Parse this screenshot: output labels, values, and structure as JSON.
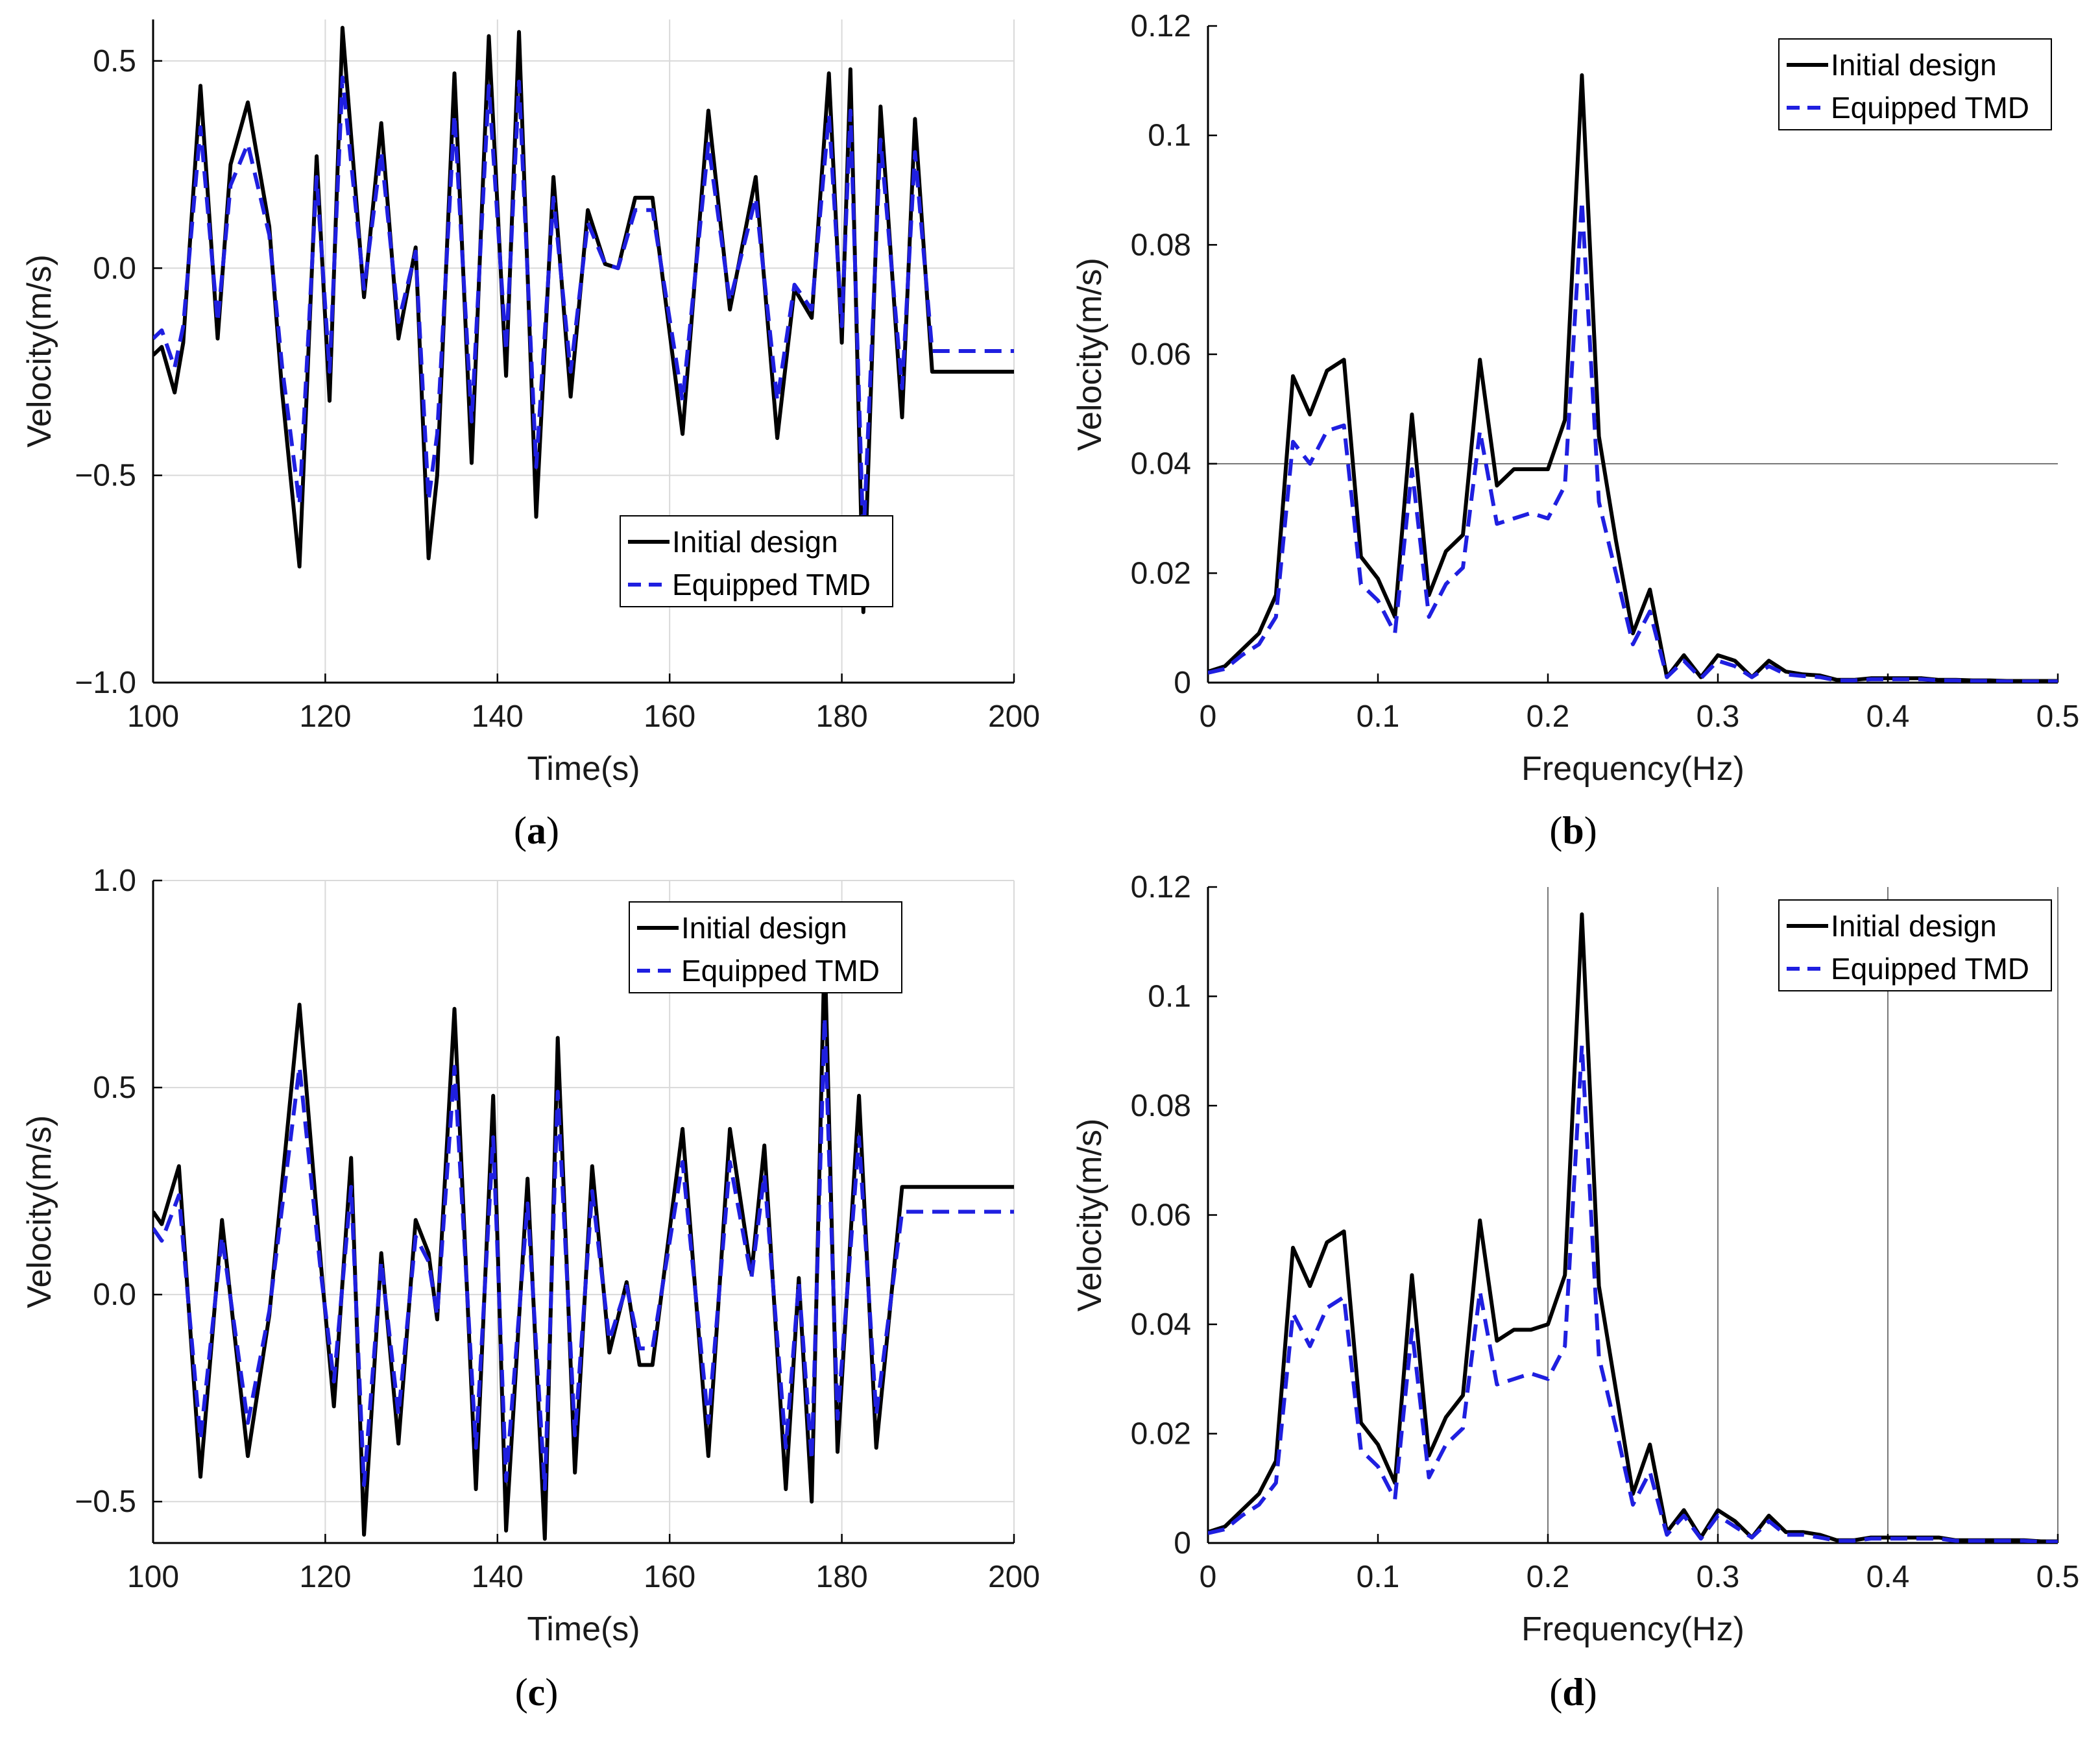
{
  "figure": {
    "colors": {
      "initial": "#000000",
      "tmd": "#1f1fe0",
      "grid": "#d9d9d9",
      "refline": "#555555"
    }
  },
  "chart_data": [
    {
      "type": "line",
      "panel": "(a)",
      "panel_letter": "a",
      "xlabel": "Time(s)",
      "ylabel": "Velocity(m/s)",
      "xlim": [
        100,
        200
      ],
      "ylim": [
        -1.0,
        0.6
      ],
      "xticks": [
        100,
        120,
        140,
        160,
        180,
        200
      ],
      "yticks": [
        -1.0,
        -0.5,
        0.0,
        0.5
      ],
      "ytick_labels": [
        "−1.0",
        "−0.5",
        "0.0",
        "0.5"
      ],
      "grid": true,
      "legend_position": "lower-right",
      "series": [
        {
          "name": "Initial design",
          "style": "solid",
          "x": [
            100,
            101,
            102.5,
            103.5,
            105.5,
            107.5,
            109,
            111,
            113.5,
            115,
            117,
            119,
            120.5,
            122,
            124.5,
            126.5,
            128.5,
            130.5,
            132,
            133,
            135,
            137,
            139,
            141,
            142.5,
            144.5,
            146.5,
            148.5,
            150.5,
            152.5,
            154,
            156,
            158,
            161.5,
            164.5,
            167,
            170,
            172.5,
            174.5,
            176.5,
            178.5,
            180,
            181,
            182.5,
            184.5,
            187,
            188.5,
            190.5,
            192.5,
            194.5,
            196.5,
            198,
            200
          ],
          "y": [
            -0.21,
            -0.19,
            -0.3,
            -0.18,
            0.44,
            -0.17,
            0.25,
            0.4,
            0.1,
            -0.3,
            -0.72,
            0.27,
            -0.32,
            0.58,
            -0.07,
            0.35,
            -0.17,
            0.05,
            -0.7,
            -0.5,
            0.47,
            -0.47,
            0.56,
            -0.26,
            0.57,
            -0.6,
            0.22,
            -0.31,
            0.14,
            0.01,
            0.0,
            0.17,
            0.17,
            -0.4,
            0.38,
            -0.1,
            0.22,
            -0.41,
            -0.05,
            -0.12,
            0.47,
            -0.18,
            0.48,
            -0.83,
            0.39,
            -0.36,
            0.36,
            -0.25,
            -0.25,
            -0.25,
            -0.25,
            -0.25,
            -0.25
          ]
        },
        {
          "name": "Equipped TMD",
          "style": "dashed",
          "x": [
            100,
            101,
            102.5,
            103.5,
            105.5,
            107.5,
            109,
            111,
            113.5,
            115,
            117,
            119,
            120.5,
            122,
            124.5,
            126.5,
            128.5,
            130.5,
            132,
            133,
            135,
            137,
            139,
            141,
            142.5,
            144.5,
            146.5,
            148.5,
            150.5,
            152.5,
            154,
            156,
            158,
            161.5,
            164.5,
            167,
            170,
            172.5,
            174.5,
            176.5,
            178.5,
            180,
            181,
            182.5,
            184.5,
            187,
            188.5,
            190.5,
            192.5,
            194.5,
            196.5,
            198,
            200
          ],
          "y": [
            -0.17,
            -0.15,
            -0.24,
            -0.14,
            0.34,
            -0.13,
            0.2,
            0.3,
            0.08,
            -0.24,
            -0.57,
            0.22,
            -0.25,
            0.46,
            -0.05,
            0.28,
            -0.13,
            0.04,
            -0.56,
            -0.4,
            0.37,
            -0.37,
            0.44,
            -0.2,
            0.45,
            -0.48,
            0.17,
            -0.25,
            0.11,
            0.01,
            0.0,
            0.14,
            0.14,
            -0.32,
            0.3,
            -0.08,
            0.17,
            -0.32,
            -0.04,
            -0.1,
            0.37,
            -0.14,
            0.38,
            -0.66,
            0.31,
            -0.29,
            0.28,
            -0.2,
            -0.2,
            -0.2,
            -0.2,
            -0.2,
            -0.2
          ]
        }
      ]
    },
    {
      "type": "line",
      "panel": "(b)",
      "panel_letter": "b",
      "xlabel": "Frequency(Hz)",
      "ylabel": "Velocity(m/s)",
      "xlim": [
        0,
        0.5
      ],
      "ylim": [
        0,
        0.12
      ],
      "xticks": [
        0,
        0.1,
        0.2,
        0.3,
        0.4,
        0.5
      ],
      "xtick_labels": [
        "0",
        "0.1",
        "0.2",
        "0.3",
        "0.4",
        "0.5"
      ],
      "yticks": [
        0,
        0.02,
        0.04,
        0.06,
        0.08,
        0.1,
        0.12
      ],
      "ytick_labels": [
        "0",
        "0.02",
        "0.04",
        "0.06",
        "0.08",
        "0.1",
        "0.12"
      ],
      "grid": false,
      "reference_lines": {
        "horizontal": [
          0.04
        ],
        "vertical": []
      },
      "legend_position": "top-right",
      "series": [
        {
          "name": "Initial design",
          "style": "solid",
          "x": [
            0,
            0.01,
            0.02,
            0.03,
            0.04,
            0.05,
            0.06,
            0.07,
            0.08,
            0.09,
            0.1,
            0.11,
            0.12,
            0.13,
            0.14,
            0.15,
            0.16,
            0.17,
            0.18,
            0.19,
            0.2,
            0.21,
            0.22,
            0.23,
            0.24,
            0.25,
            0.26,
            0.27,
            0.28,
            0.29,
            0.3,
            0.31,
            0.32,
            0.33,
            0.34,
            0.35,
            0.36,
            0.37,
            0.38,
            0.39,
            0.4,
            0.41,
            0.42,
            0.43,
            0.44,
            0.45,
            0.46,
            0.47,
            0.48,
            0.49,
            0.5
          ],
          "y": [
            0.002,
            0.003,
            0.006,
            0.009,
            0.016,
            0.056,
            0.049,
            0.057,
            0.059,
            0.023,
            0.019,
            0.012,
            0.049,
            0.016,
            0.024,
            0.027,
            0.059,
            0.036,
            0.039,
            0.039,
            0.039,
            0.048,
            0.111,
            0.045,
            0.026,
            0.009,
            0.017,
            0.001,
            0.005,
            0.001,
            0.005,
            0.004,
            0.001,
            0.004,
            0.002,
            0.0015,
            0.0013,
            0.0005,
            0.0005,
            0.0008,
            0.0008,
            0.0008,
            0.0008,
            0.0005,
            0.0005,
            0.0004,
            0.0004,
            0.0003,
            0.0003,
            0.0003,
            0.0003
          ]
        },
        {
          "name": "Equipped TMD",
          "style": "dashed",
          "x": [
            0,
            0.01,
            0.02,
            0.03,
            0.04,
            0.05,
            0.06,
            0.07,
            0.08,
            0.09,
            0.1,
            0.11,
            0.12,
            0.13,
            0.14,
            0.15,
            0.16,
            0.17,
            0.18,
            0.19,
            0.2,
            0.21,
            0.22,
            0.23,
            0.24,
            0.25,
            0.26,
            0.27,
            0.28,
            0.29,
            0.3,
            0.31,
            0.32,
            0.33,
            0.34,
            0.35,
            0.36,
            0.37,
            0.38,
            0.39,
            0.4,
            0.41,
            0.42,
            0.43,
            0.44,
            0.45,
            0.46,
            0.47,
            0.48,
            0.49,
            0.5
          ],
          "y": [
            0.0018,
            0.0025,
            0.005,
            0.007,
            0.012,
            0.044,
            0.04,
            0.046,
            0.047,
            0.018,
            0.015,
            0.009,
            0.039,
            0.012,
            0.018,
            0.021,
            0.046,
            0.029,
            0.03,
            0.031,
            0.03,
            0.036,
            0.088,
            0.033,
            0.02,
            0.007,
            0.013,
            0.001,
            0.004,
            0.0008,
            0.004,
            0.003,
            0.001,
            0.003,
            0.0015,
            0.0012,
            0.001,
            0.0004,
            0.0004,
            0.0006,
            0.0006,
            0.0006,
            0.0006,
            0.0004,
            0.0004,
            0.0003,
            0.0003,
            0.0002,
            0.0002,
            0.0002,
            0.0002
          ]
        }
      ]
    },
    {
      "type": "line",
      "panel": "(c)",
      "panel_letter": "c",
      "xlabel": "Time(s)",
      "ylabel": "Velocity(m/s)",
      "xlim": [
        100,
        200
      ],
      "ylim": [
        -0.6,
        1.0
      ],
      "xticks": [
        100,
        120,
        140,
        160,
        180,
        200
      ],
      "yticks": [
        -0.5,
        0.0,
        0.5,
        1.0
      ],
      "ytick_labels": [
        "−0.5",
        "0.0",
        "0.5",
        "1.0"
      ],
      "grid": true,
      "legend_position": "top-right",
      "series": [
        {
          "name": "Initial design",
          "style": "solid",
          "x": [
            100,
            101,
            103,
            105.5,
            108,
            111,
            113.5,
            117,
            119.5,
            121,
            123,
            124.5,
            126.5,
            128.5,
            130.5,
            132,
            133,
            135,
            137.5,
            139.5,
            141,
            143.5,
            145.5,
            147,
            149,
            151,
            153,
            155,
            156.5,
            158,
            161.5,
            164.5,
            167,
            169.5,
            171,
            173.5,
            175,
            176.5,
            178,
            179.5,
            182,
            184,
            187,
            189,
            190.5,
            192.5,
            194.5,
            196.5,
            198,
            200
          ],
          "y": [
            0.2,
            0.17,
            0.31,
            -0.44,
            0.18,
            -0.39,
            -0.05,
            0.7,
            0.07,
            -0.27,
            0.33,
            -0.58,
            0.1,
            -0.36,
            0.18,
            0.1,
            -0.06,
            0.69,
            -0.47,
            0.48,
            -0.57,
            0.28,
            -0.59,
            0.62,
            -0.43,
            0.31,
            -0.14,
            0.03,
            -0.17,
            -0.17,
            0.4,
            -0.39,
            0.4,
            0.05,
            0.36,
            -0.47,
            0.04,
            -0.5,
            0.84,
            -0.38,
            0.48,
            -0.37,
            0.26,
            0.26,
            0.26,
            0.26,
            0.26,
            0.26,
            0.26,
            0.26
          ]
        },
        {
          "name": "Equipped TMD",
          "style": "dashed",
          "x": [
            100,
            101,
            103,
            105.5,
            108,
            111,
            113.5,
            117,
            119.5,
            121,
            123,
            124.5,
            126.5,
            128.5,
            130.5,
            132,
            133,
            135,
            137.5,
            139.5,
            141,
            143.5,
            145.5,
            147,
            149,
            151,
            153,
            155,
            156.5,
            158,
            161.5,
            164.5,
            167,
            169.5,
            171,
            173.5,
            175,
            176.5,
            178,
            179.5,
            182,
            184,
            187,
            189,
            190.5,
            192.5,
            194.5,
            196.5,
            198,
            200
          ],
          "y": [
            0.16,
            0.13,
            0.24,
            -0.35,
            0.14,
            -0.31,
            -0.04,
            0.55,
            0.05,
            -0.21,
            0.26,
            -0.46,
            0.08,
            -0.29,
            0.14,
            0.08,
            -0.05,
            0.55,
            -0.37,
            0.38,
            -0.45,
            0.22,
            -0.47,
            0.49,
            -0.34,
            0.25,
            -0.11,
            0.02,
            -0.13,
            -0.13,
            0.32,
            -0.31,
            0.32,
            0.04,
            0.29,
            -0.37,
            0.03,
            -0.4,
            0.67,
            -0.3,
            0.38,
            -0.29,
            0.2,
            0.2,
            0.2,
            0.2,
            0.2,
            0.2,
            0.2,
            0.2
          ]
        }
      ]
    },
    {
      "type": "line",
      "panel": "(d)",
      "panel_letter": "d",
      "xlabel": "Frequency(Hz)",
      "ylabel": "Velocity(m/s)",
      "xlim": [
        0,
        0.5
      ],
      "ylim": [
        0,
        0.12
      ],
      "xticks": [
        0,
        0.1,
        0.2,
        0.3,
        0.4,
        0.5
      ],
      "xtick_labels": [
        "0",
        "0.1",
        "0.2",
        "0.3",
        "0.4",
        "0.5"
      ],
      "yticks": [
        0,
        0.02,
        0.04,
        0.06,
        0.08,
        0.1,
        0.12
      ],
      "ytick_labels": [
        "0",
        "0.02",
        "0.04",
        "0.06",
        "0.08",
        "0.1",
        "0.12"
      ],
      "grid": false,
      "reference_lines": {
        "horizontal": [],
        "vertical": [
          0.2,
          0.3,
          0.4,
          0.5
        ]
      },
      "legend_position": "top-right",
      "series": [
        {
          "name": "Initial design",
          "style": "solid",
          "x": [
            0,
            0.01,
            0.02,
            0.03,
            0.04,
            0.05,
            0.06,
            0.07,
            0.08,
            0.09,
            0.1,
            0.11,
            0.12,
            0.13,
            0.14,
            0.15,
            0.16,
            0.17,
            0.18,
            0.19,
            0.2,
            0.21,
            0.22,
            0.23,
            0.24,
            0.25,
            0.26,
            0.27,
            0.28,
            0.29,
            0.3,
            0.31,
            0.32,
            0.33,
            0.34,
            0.35,
            0.36,
            0.37,
            0.38,
            0.39,
            0.4,
            0.41,
            0.42,
            0.43,
            0.44,
            0.45,
            0.46,
            0.47,
            0.48,
            0.49,
            0.5
          ],
          "y": [
            0.002,
            0.003,
            0.006,
            0.009,
            0.015,
            0.054,
            0.047,
            0.055,
            0.057,
            0.022,
            0.018,
            0.011,
            0.049,
            0.016,
            0.023,
            0.027,
            0.059,
            0.037,
            0.039,
            0.039,
            0.04,
            0.049,
            0.115,
            0.047,
            0.028,
            0.009,
            0.018,
            0.002,
            0.006,
            0.001,
            0.006,
            0.004,
            0.001,
            0.005,
            0.002,
            0.002,
            0.0015,
            0.0005,
            0.0005,
            0.001,
            0.001,
            0.001,
            0.001,
            0.001,
            0.0005,
            0.0005,
            0.0005,
            0.0005,
            0.0005,
            0.0003,
            0.0003
          ]
        },
        {
          "name": "Equipped TMD",
          "style": "dashed",
          "x": [
            0,
            0.01,
            0.02,
            0.03,
            0.04,
            0.05,
            0.06,
            0.07,
            0.08,
            0.09,
            0.1,
            0.11,
            0.12,
            0.13,
            0.14,
            0.15,
            0.16,
            0.17,
            0.18,
            0.19,
            0.2,
            0.21,
            0.22,
            0.23,
            0.24,
            0.25,
            0.26,
            0.27,
            0.28,
            0.29,
            0.3,
            0.31,
            0.32,
            0.33,
            0.34,
            0.35,
            0.36,
            0.37,
            0.38,
            0.39,
            0.4,
            0.41,
            0.42,
            0.43,
            0.44,
            0.45,
            0.46,
            0.47,
            0.48,
            0.49,
            0.5
          ],
          "y": [
            0.0018,
            0.0025,
            0.005,
            0.007,
            0.011,
            0.042,
            0.036,
            0.043,
            0.045,
            0.017,
            0.014,
            0.008,
            0.039,
            0.012,
            0.018,
            0.021,
            0.046,
            0.029,
            0.03,
            0.031,
            0.03,
            0.036,
            0.091,
            0.034,
            0.021,
            0.007,
            0.013,
            0.0015,
            0.005,
            0.0008,
            0.005,
            0.003,
            0.001,
            0.004,
            0.0015,
            0.0015,
            0.001,
            0.0004,
            0.0004,
            0.0008,
            0.0008,
            0.0008,
            0.0008,
            0.0008,
            0.0004,
            0.0004,
            0.0004,
            0.0004,
            0.0004,
            0.0002,
            0.0002
          ]
        }
      ]
    }
  ]
}
